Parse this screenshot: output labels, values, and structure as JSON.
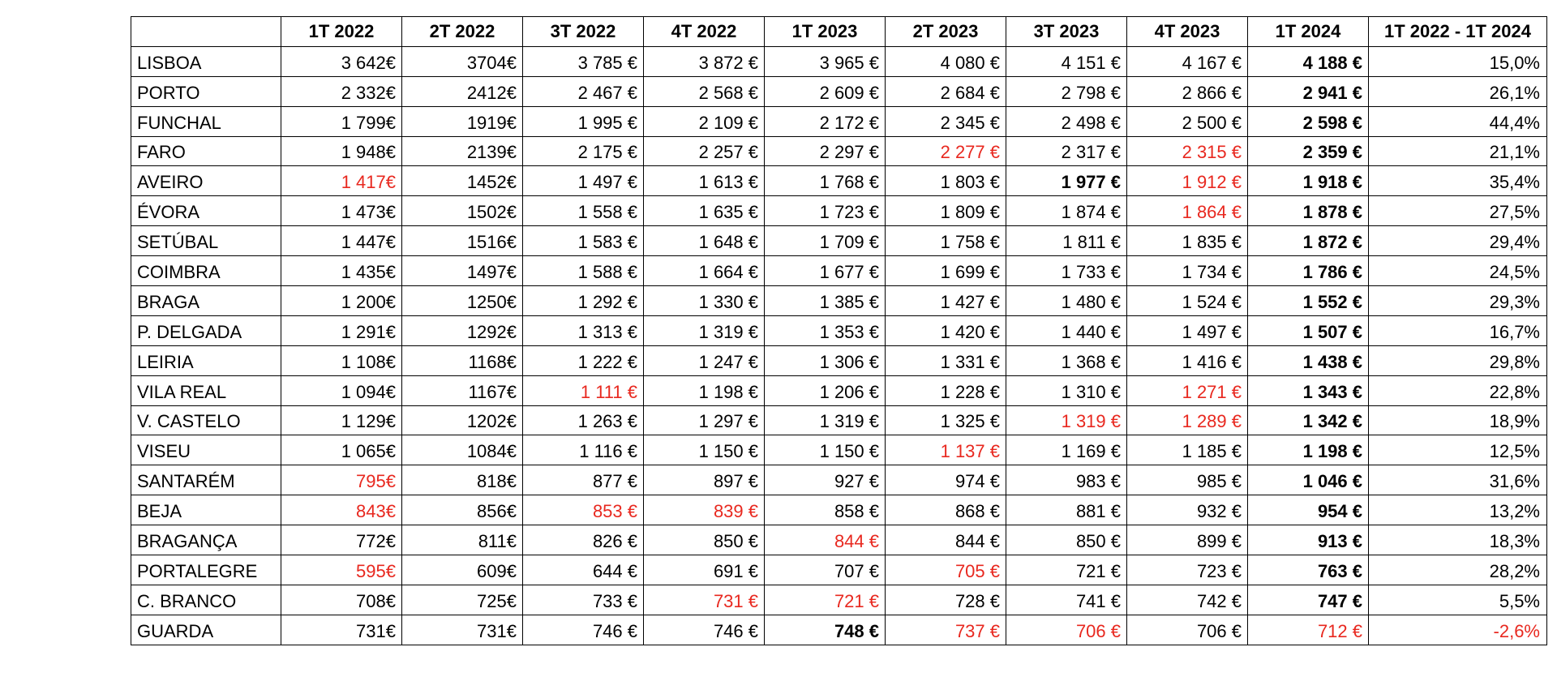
{
  "table": {
    "corner": "",
    "headers": [
      "1T 2022",
      "2T 2022",
      "3T 2022",
      "4T 2022",
      "1T 2023",
      "2T 2023",
      "3T 2023",
      "4T 2023",
      "1T 2024",
      "1T 2022 - 1T 2024"
    ],
    "colors": {
      "highlight": "#e8281f",
      "text": "#000000"
    },
    "rows": [
      {
        "city": "LISBOA",
        "cells": [
          {
            "v": "3 642€"
          },
          {
            "v": "3704€"
          },
          {
            "v": "3 785 €"
          },
          {
            "v": "3 872 €"
          },
          {
            "v": "3 965 €"
          },
          {
            "v": "4 080 €"
          },
          {
            "v": "4 151 €"
          },
          {
            "v": "4 167 €"
          },
          {
            "v": "4 188 €",
            "bold": true
          },
          {
            "v": "15,0%"
          }
        ]
      },
      {
        "city": "PORTO",
        "cells": [
          {
            "v": "2 332€"
          },
          {
            "v": "2412€"
          },
          {
            "v": "2 467 €"
          },
          {
            "v": "2 568 €"
          },
          {
            "v": "2 609 €"
          },
          {
            "v": "2 684 €"
          },
          {
            "v": "2 798 €"
          },
          {
            "v": "2 866 €"
          },
          {
            "v": "2 941 €",
            "bold": true
          },
          {
            "v": "26,1%"
          }
        ]
      },
      {
        "city": "FUNCHAL",
        "cells": [
          {
            "v": "1 799€"
          },
          {
            "v": "1919€"
          },
          {
            "v": "1 995 €"
          },
          {
            "v": "2 109 €"
          },
          {
            "v": "2 172 €"
          },
          {
            "v": "2 345 €"
          },
          {
            "v": "2 498 €"
          },
          {
            "v": "2 500 €"
          },
          {
            "v": "2 598 €",
            "bold": true
          },
          {
            "v": "44,4%"
          }
        ]
      },
      {
        "city": "FARO",
        "cells": [
          {
            "v": "1 948€"
          },
          {
            "v": "2139€"
          },
          {
            "v": "2 175 €"
          },
          {
            "v": "2 257 €"
          },
          {
            "v": "2 297 €"
          },
          {
            "v": "2 277 €",
            "red": true
          },
          {
            "v": "2 317 €"
          },
          {
            "v": "2 315 €",
            "red": true
          },
          {
            "v": "2 359 €",
            "bold": true
          },
          {
            "v": "21,1%"
          }
        ]
      },
      {
        "city": "AVEIRO",
        "cells": [
          {
            "v": "1 417€",
            "red": true
          },
          {
            "v": "1452€"
          },
          {
            "v": "1 497 €"
          },
          {
            "v": "1 613 €"
          },
          {
            "v": "1 768 €"
          },
          {
            "v": "1 803 €"
          },
          {
            "v": "1 977 €",
            "bold": true
          },
          {
            "v": "1 912 €",
            "red": true
          },
          {
            "v": "1 918 €",
            "bold": true
          },
          {
            "v": "35,4%"
          }
        ]
      },
      {
        "city": "ÉVORA",
        "cells": [
          {
            "v": "1 473€"
          },
          {
            "v": "1502€"
          },
          {
            "v": "1 558 €"
          },
          {
            "v": "1 635 €"
          },
          {
            "v": "1 723 €"
          },
          {
            "v": "1 809 €"
          },
          {
            "v": "1 874 €"
          },
          {
            "v": "1 864 €",
            "red": true
          },
          {
            "v": "1 878 €",
            "bold": true
          },
          {
            "v": "27,5%"
          }
        ]
      },
      {
        "city": "SETÚBAL",
        "cells": [
          {
            "v": "1 447€"
          },
          {
            "v": "1516€"
          },
          {
            "v": "1 583 €"
          },
          {
            "v": "1 648 €"
          },
          {
            "v": "1 709 €"
          },
          {
            "v": "1 758 €"
          },
          {
            "v": "1 811 €"
          },
          {
            "v": "1 835 €"
          },
          {
            "v": "1 872 €",
            "bold": true
          },
          {
            "v": "29,4%"
          }
        ]
      },
      {
        "city": "COIMBRA",
        "cells": [
          {
            "v": "1 435€"
          },
          {
            "v": "1497€"
          },
          {
            "v": "1 588 €"
          },
          {
            "v": "1 664 €"
          },
          {
            "v": "1 677 €"
          },
          {
            "v": "1 699 €"
          },
          {
            "v": "1 733 €"
          },
          {
            "v": "1 734 €"
          },
          {
            "v": "1 786 €",
            "bold": true
          },
          {
            "v": "24,5%"
          }
        ]
      },
      {
        "city": "BRAGA",
        "cells": [
          {
            "v": "1 200€"
          },
          {
            "v": "1250€"
          },
          {
            "v": "1 292 €"
          },
          {
            "v": "1 330 €"
          },
          {
            "v": "1 385 €"
          },
          {
            "v": "1 427 €"
          },
          {
            "v": "1 480 €"
          },
          {
            "v": "1 524 €"
          },
          {
            "v": "1 552 €",
            "bold": true
          },
          {
            "v": "29,3%"
          }
        ]
      },
      {
        "city": "P. DELGADA",
        "cells": [
          {
            "v": "1 291€"
          },
          {
            "v": "1292€"
          },
          {
            "v": "1 313 €"
          },
          {
            "v": "1 319 €"
          },
          {
            "v": "1 353 €"
          },
          {
            "v": "1 420 €"
          },
          {
            "v": "1 440 €"
          },
          {
            "v": "1 497 €"
          },
          {
            "v": "1 507 €",
            "bold": true
          },
          {
            "v": "16,7%"
          }
        ]
      },
      {
        "city": "LEIRIA",
        "cells": [
          {
            "v": "1 108€"
          },
          {
            "v": "1168€"
          },
          {
            "v": "1 222 €"
          },
          {
            "v": "1 247 €"
          },
          {
            "v": "1 306 €"
          },
          {
            "v": "1 331 €"
          },
          {
            "v": "1 368 €"
          },
          {
            "v": "1 416 €"
          },
          {
            "v": "1 438 €",
            "bold": true
          },
          {
            "v": "29,8%"
          }
        ]
      },
      {
        "city": "VILA REAL",
        "cells": [
          {
            "v": "1 094€"
          },
          {
            "v": "1167€"
          },
          {
            "v": "1 111 €",
            "red": true
          },
          {
            "v": "1 198 €"
          },
          {
            "v": "1 206 €"
          },
          {
            "v": "1 228 €"
          },
          {
            "v": "1 310 €"
          },
          {
            "v": "1 271 €",
            "red": true
          },
          {
            "v": "1 343 €",
            "bold": true
          },
          {
            "v": "22,8%"
          }
        ]
      },
      {
        "city": "V. CASTELO",
        "cells": [
          {
            "v": "1 129€"
          },
          {
            "v": "1202€"
          },
          {
            "v": "1 263 €"
          },
          {
            "v": "1 297 €"
          },
          {
            "v": "1 319 €"
          },
          {
            "v": "1 325 €"
          },
          {
            "v": "1 319 €",
            "red": true
          },
          {
            "v": "1 289 €",
            "red": true
          },
          {
            "v": "1 342 €",
            "bold": true
          },
          {
            "v": "18,9%"
          }
        ]
      },
      {
        "city": "VISEU",
        "cells": [
          {
            "v": "1 065€"
          },
          {
            "v": "1084€"
          },
          {
            "v": "1 116 €"
          },
          {
            "v": "1 150 €"
          },
          {
            "v": "1 150 €"
          },
          {
            "v": "1 137 €",
            "red": true
          },
          {
            "v": "1 169 €"
          },
          {
            "v": "1 185 €"
          },
          {
            "v": "1 198 €",
            "bold": true
          },
          {
            "v": "12,5%"
          }
        ]
      },
      {
        "city": "SANTARÉM",
        "cells": [
          {
            "v": "795€",
            "red": true
          },
          {
            "v": "818€"
          },
          {
            "v": "877 €"
          },
          {
            "v": "897 €"
          },
          {
            "v": "927 €"
          },
          {
            "v": "974 €"
          },
          {
            "v": "983 €"
          },
          {
            "v": "985 €"
          },
          {
            "v": "1 046 €",
            "bold": true
          },
          {
            "v": "31,6%"
          }
        ]
      },
      {
        "city": "BEJA",
        "cells": [
          {
            "v": "843€",
            "red": true
          },
          {
            "v": "856€"
          },
          {
            "v": "853 €",
            "red": true
          },
          {
            "v": "839 €",
            "red": true
          },
          {
            "v": "858 €"
          },
          {
            "v": "868 €"
          },
          {
            "v": "881 €"
          },
          {
            "v": "932 €"
          },
          {
            "v": "954 €",
            "bold": true
          },
          {
            "v": "13,2%"
          }
        ]
      },
      {
        "city": "BRAGANÇA",
        "cells": [
          {
            "v": "772€"
          },
          {
            "v": "811€"
          },
          {
            "v": "826 €"
          },
          {
            "v": "850 €"
          },
          {
            "v": "844 €",
            "red": true
          },
          {
            "v": "844 €"
          },
          {
            "v": "850 €"
          },
          {
            "v": "899 €"
          },
          {
            "v": "913 €",
            "bold": true
          },
          {
            "v": "18,3%"
          }
        ]
      },
      {
        "city": "PORTALEGRE",
        "cells": [
          {
            "v": "595€",
            "red": true
          },
          {
            "v": "609€"
          },
          {
            "v": "644 €"
          },
          {
            "v": "691 €"
          },
          {
            "v": "707 €"
          },
          {
            "v": "705 €",
            "red": true
          },
          {
            "v": "721 €"
          },
          {
            "v": "723 €"
          },
          {
            "v": "763 €",
            "bold": true
          },
          {
            "v": "28,2%"
          }
        ]
      },
      {
        "city": "C. BRANCO",
        "cells": [
          {
            "v": "708€"
          },
          {
            "v": "725€"
          },
          {
            "v": "733 €"
          },
          {
            "v": "731 €",
            "red": true
          },
          {
            "v": "721 €",
            "red": true
          },
          {
            "v": "728 €"
          },
          {
            "v": "741 €"
          },
          {
            "v": "742 €"
          },
          {
            "v": "747 €",
            "bold": true
          },
          {
            "v": "5,5%"
          }
        ]
      },
      {
        "city": "GUARDA",
        "cells": [
          {
            "v": "731€"
          },
          {
            "v": "731€"
          },
          {
            "v": "746 €"
          },
          {
            "v": "746 €"
          },
          {
            "v": "748 €",
            "bold": true
          },
          {
            "v": "737 €",
            "red": true
          },
          {
            "v": "706 €",
            "red": true
          },
          {
            "v": "706 €"
          },
          {
            "v": "712 €",
            "red": true
          },
          {
            "v": "-2,6%",
            "red": true
          }
        ]
      }
    ]
  }
}
